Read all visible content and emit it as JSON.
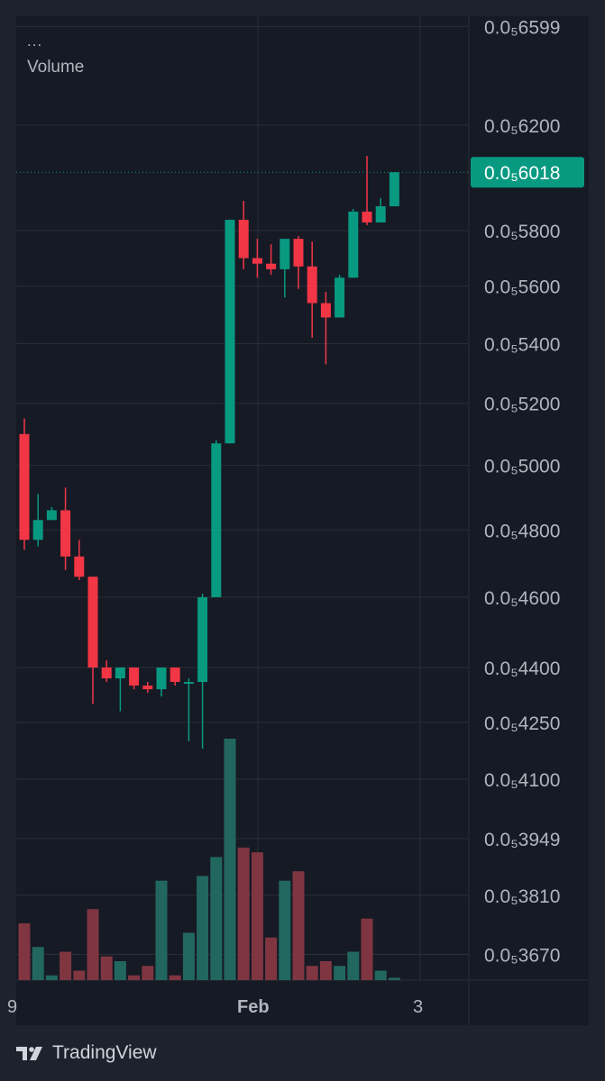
{
  "legend": {
    "more": "...",
    "volume_label": "Volume"
  },
  "footer": {
    "brand": "TradingView"
  },
  "colors": {
    "up": "#089981",
    "down": "#f23645",
    "vol_up": "#22675f",
    "vol_down": "#7f3640",
    "grid": "#2a2e39",
    "axis_text": "#b2b5be",
    "background": "#161a25",
    "price_tag": "#089981"
  },
  "chart_data": {
    "type": "candlestick",
    "price_axis": {
      "ticks": [
        "0.0₅6599",
        "0.0₅6200",
        "0.0₅5800",
        "0.0₅5600",
        "0.0₅5400",
        "0.0₅5200",
        "0.0₅5000",
        "0.0₅4800",
        "0.0₅4600",
        "0.0₅4400",
        "0.0₅4250",
        "0.0₅4100",
        "0.0₅3949",
        "0.0₅3810",
        "0.0₅3670"
      ],
      "scale": "log"
    },
    "time_axis": {
      "labels": [
        "9",
        "Feb",
        "3"
      ]
    },
    "last_price": {
      "label": "0.0₅6018",
      "value": 6018
    },
    "candles": [
      {
        "o": 5100,
        "h": 5150,
        "l": 4740,
        "c": 4770
      },
      {
        "o": 4770,
        "h": 4910,
        "l": 4750,
        "c": 4830
      },
      {
        "o": 4830,
        "h": 4870,
        "l": 4830,
        "c": 4860
      },
      {
        "o": 4860,
        "h": 4930,
        "l": 4680,
        "c": 4720
      },
      {
        "o": 4720,
        "h": 4770,
        "l": 4650,
        "c": 4660
      },
      {
        "o": 4660,
        "h": 4660,
        "l": 4300,
        "c": 4400
      },
      {
        "o": 4400,
        "h": 4420,
        "l": 4360,
        "c": 4370
      },
      {
        "o": 4370,
        "h": 4400,
        "l": 4280,
        "c": 4400
      },
      {
        "o": 4400,
        "h": 4400,
        "l": 4340,
        "c": 4350
      },
      {
        "o": 4350,
        "h": 4360,
        "l": 4330,
        "c": 4340
      },
      {
        "o": 4340,
        "h": 4400,
        "l": 4320,
        "c": 4400
      },
      {
        "o": 4400,
        "h": 4400,
        "l": 4350,
        "c": 4360
      },
      {
        "o": 4360,
        "h": 4370,
        "l": 4200,
        "c": 4360
      },
      {
        "o": 4360,
        "h": 4610,
        "l": 4180,
        "c": 4600
      },
      {
        "o": 4600,
        "h": 5080,
        "l": 4600,
        "c": 5070
      },
      {
        "o": 5070,
        "h": 5840,
        "l": 5070,
        "c": 5840
      },
      {
        "o": 5840,
        "h": 5910,
        "l": 5660,
        "c": 5700
      },
      {
        "o": 5700,
        "h": 5770,
        "l": 5630,
        "c": 5680
      },
      {
        "o": 5680,
        "h": 5750,
        "l": 5640,
        "c": 5660
      },
      {
        "o": 5660,
        "h": 5770,
        "l": 5560,
        "c": 5770
      },
      {
        "o": 5770,
        "h": 5780,
        "l": 5590,
        "c": 5670
      },
      {
        "o": 5670,
        "h": 5760,
        "l": 5420,
        "c": 5540
      },
      {
        "o": 5540,
        "h": 5580,
        "l": 5330,
        "c": 5490
      },
      {
        "o": 5490,
        "h": 5640,
        "l": 5490,
        "c": 5630
      },
      {
        "o": 5630,
        "h": 5880,
        "l": 5630,
        "c": 5870
      },
      {
        "o": 5870,
        "h": 6080,
        "l": 5820,
        "c": 5830
      },
      {
        "o": 5830,
        "h": 5920,
        "l": 5830,
        "c": 5890
      },
      {
        "o": 5890,
        "h": 6018,
        "l": 5890,
        "c": 6018
      }
    ],
    "volume": [
      12,
      7,
      1,
      6,
      2,
      15,
      5,
      4,
      1,
      3,
      21,
      1,
      10,
      22,
      26,
      51,
      28,
      27,
      9,
      21,
      23,
      3,
      4,
      3,
      6,
      13,
      2,
      0.5
    ]
  }
}
